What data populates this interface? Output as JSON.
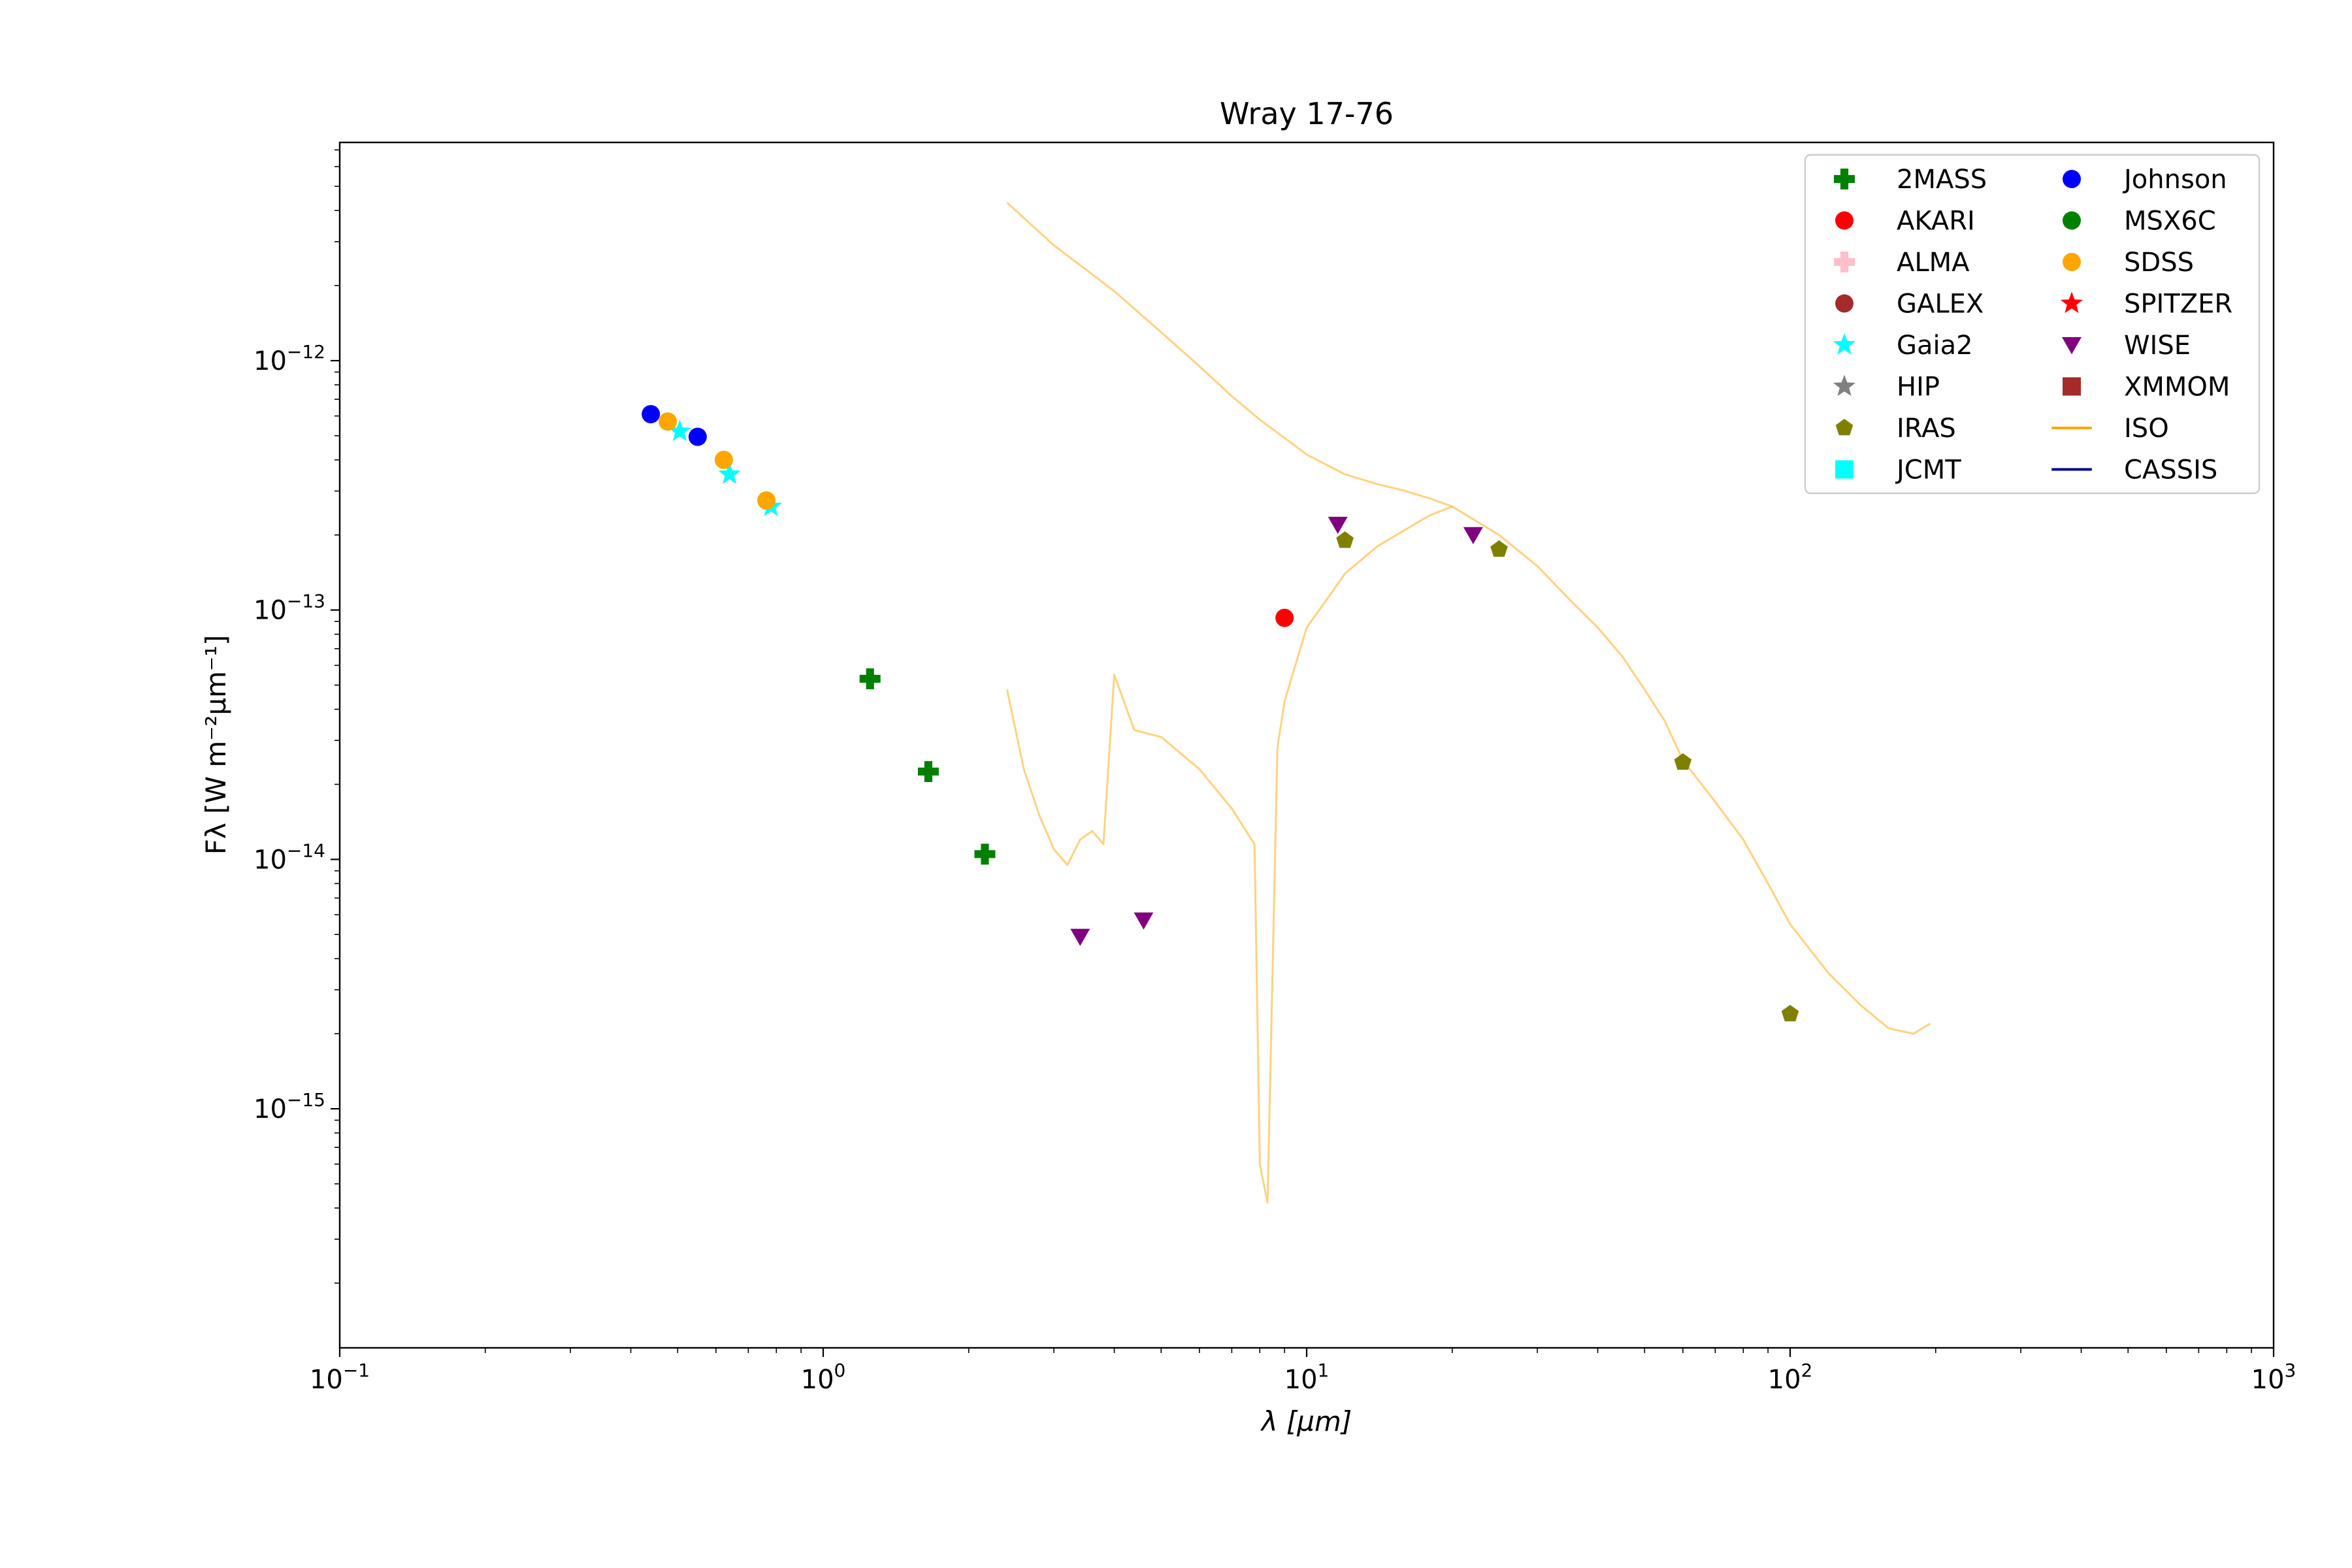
{
  "chart_data": {
    "type": "scatter",
    "title": "Wray 17-76",
    "xlabel": "λ [μm]",
    "ylabel": "Fλ [W m⁻²μm⁻¹]",
    "xscale": "log",
    "yscale": "log",
    "xlim": [
      0.1,
      1000
    ],
    "ylim": [
      1.1e-16,
      7.5e-12
    ],
    "grid": false,
    "legend_position": "top-right",
    "x_ticks": [
      {
        "value": 0.1,
        "base": "10",
        "exp": "−1"
      },
      {
        "value": 1,
        "base": "10",
        "exp": "0"
      },
      {
        "value": 10,
        "base": "10",
        "exp": "1"
      },
      {
        "value": 100,
        "base": "10",
        "exp": "2"
      },
      {
        "value": 1000,
        "base": "10",
        "exp": "3"
      }
    ],
    "y_ticks": [
      {
        "value": 1e-15,
        "base": "10",
        "exp": "−15"
      },
      {
        "value": 1e-14,
        "base": "10",
        "exp": "−14"
      },
      {
        "value": 1e-13,
        "base": "10",
        "exp": "−13"
      },
      {
        "value": 1e-12,
        "base": "10",
        "exp": "−12"
      }
    ],
    "series": [
      {
        "name": "2MASS",
        "marker": "plus",
        "color": "#008000",
        "points": [
          [
            1.25,
            5.3e-14
          ],
          [
            1.65,
            2.25e-14
          ],
          [
            2.16,
            1.05e-14
          ]
        ]
      },
      {
        "name": "AKARI",
        "marker": "circle",
        "color": "#ff0000",
        "points": [
          [
            9.0,
            9.3e-14
          ]
        ]
      },
      {
        "name": "ALMA",
        "marker": "plus",
        "color": "#ffc0cb",
        "points": []
      },
      {
        "name": "GALEX",
        "marker": "circle",
        "color": "#a52a2a",
        "points": []
      },
      {
        "name": "Gaia2",
        "marker": "star",
        "color": "#00ffff",
        "points": [
          [
            0.505,
            5.2e-13
          ],
          [
            0.64,
            3.5e-13
          ],
          [
            0.78,
            2.6e-13
          ]
        ]
      },
      {
        "name": "HIP",
        "marker": "star",
        "color": "#808080",
        "points": []
      },
      {
        "name": "IRAS",
        "marker": "pentagon",
        "color": "#808000",
        "points": [
          [
            12,
            1.9e-13
          ],
          [
            25,
            1.75e-13
          ],
          [
            60,
            2.45e-14
          ],
          [
            100,
            2.4e-15
          ]
        ]
      },
      {
        "name": "JCMT",
        "marker": "square",
        "color": "#00ffff",
        "points": []
      },
      {
        "name": "Johnson",
        "marker": "circle",
        "color": "#0000ff",
        "points": [
          [
            0.44,
            6.1e-13
          ],
          [
            0.55,
            4.95e-13
          ]
        ]
      },
      {
        "name": "MSX6C",
        "marker": "circle",
        "color": "#008000",
        "points": []
      },
      {
        "name": "SDSS",
        "marker": "circle",
        "color": "#ffa500",
        "points": [
          [
            0.477,
            5.7e-13
          ],
          [
            0.623,
            4e-13
          ],
          [
            0.763,
            2.75e-13
          ]
        ]
      },
      {
        "name": "SPITZER",
        "marker": "star",
        "color": "#ff0000",
        "points": []
      },
      {
        "name": "WISE",
        "marker": "triangle-down",
        "color": "#800080",
        "points": [
          [
            3.4,
            4.9e-15
          ],
          [
            4.6,
            5.7e-15
          ],
          [
            11.6,
            2.2e-13
          ],
          [
            22.1,
            2e-13
          ]
        ]
      },
      {
        "name": "XMMOM",
        "marker": "square",
        "color": "#a52a2a",
        "points": []
      },
      {
        "name": "ISO",
        "marker": "line",
        "color": "#ffa500",
        "points": []
      },
      {
        "name": "CASSIS",
        "marker": "line",
        "color": "#00008b",
        "points": []
      }
    ],
    "iso_spectrum": {
      "color": "#ffa500",
      "opacity": 0.5,
      "segments": [
        [
          [
            2.4,
            4.3e-12
          ],
          [
            3.0,
            2.9e-12
          ],
          [
            4.0,
            1.9e-12
          ],
          [
            5.0,
            1.3e-12
          ],
          [
            6.0,
            9.5e-13
          ],
          [
            7.0,
            7.2e-13
          ],
          [
            8.0,
            5.8e-13
          ],
          [
            9.0,
            4.9e-13
          ],
          [
            10.0,
            4.2e-13
          ],
          [
            12.0,
            3.5e-13
          ],
          [
            14.0,
            3.2e-13
          ],
          [
            16.0,
            3e-13
          ],
          [
            18.0,
            2.8e-13
          ],
          [
            20.0,
            2.6e-13
          ],
          [
            25.0,
            2e-13
          ],
          [
            30.0,
            1.5e-13
          ],
          [
            35.0,
            1.1e-13
          ],
          [
            40.0,
            8.5e-14
          ],
          [
            45.0,
            6.5e-14
          ],
          [
            50.0,
            4.8e-14
          ],
          [
            55.0,
            3.6e-14
          ],
          [
            60.0,
            2.5e-14
          ],
          [
            70.0,
            1.7e-14
          ],
          [
            80.0,
            1.2e-14
          ],
          [
            90.0,
            8e-15
          ],
          [
            100.0,
            5.5e-15
          ],
          [
            120.0,
            3.5e-15
          ],
          [
            140.0,
            2.6e-15
          ],
          [
            160.0,
            2.1e-15
          ],
          [
            180.0,
            2e-15
          ],
          [
            195.0,
            2.2e-15
          ]
        ],
        [
          [
            2.4,
            4.8e-14
          ],
          [
            2.6,
            2.3e-14
          ],
          [
            2.8,
            1.5e-14
          ],
          [
            3.0,
            1.1e-14
          ],
          [
            3.2,
            9.5e-15
          ],
          [
            3.4,
            1.2e-14
          ],
          [
            3.6,
            1.3e-14
          ],
          [
            3.8,
            1.15e-14
          ],
          [
            4.0,
            5.5e-14
          ],
          [
            4.4,
            3.3e-14
          ],
          [
            5.0,
            3.1e-14
          ],
          [
            6.0,
            2.3e-14
          ],
          [
            7.0,
            1.6e-14
          ],
          [
            7.8,
            1.15e-14
          ],
          [
            8.0,
            6e-16
          ],
          [
            8.3,
            4.2e-16
          ],
          [
            8.7,
            2.8e-14
          ],
          [
            9.0,
            4.3e-14
          ],
          [
            10.0,
            8.5e-14
          ],
          [
            11.0,
            1.1e-13
          ],
          [
            12.0,
            1.4e-13
          ],
          [
            14.0,
            1.8e-13
          ],
          [
            16.0,
            2.1e-13
          ],
          [
            18.0,
            2.4e-13
          ],
          [
            20.0,
            2.6e-13
          ]
        ]
      ]
    }
  }
}
